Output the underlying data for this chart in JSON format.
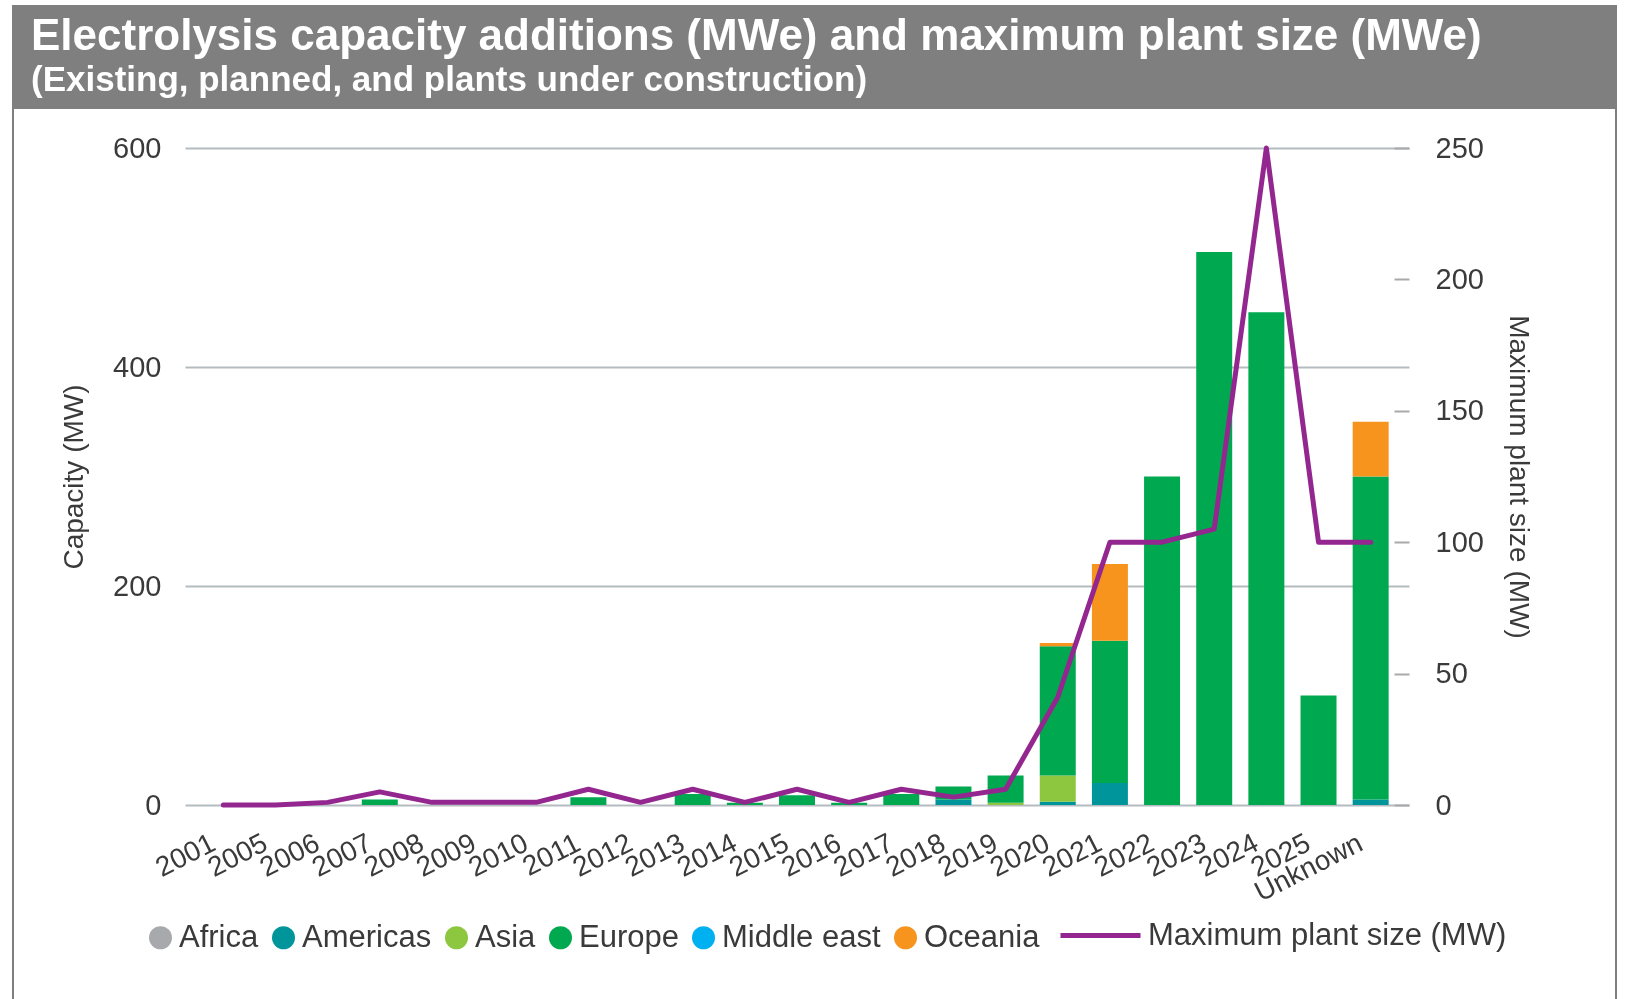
{
  "chart_data": {
    "type": "bar",
    "title": "Electrolysis capacity additions (MWe) and maximum plant size (MWe)",
    "subtitle": "(Existing, planned, and plants under construction)",
    "ylabel": "Capacity (MW)",
    "y2label": "Maximum plant size (MW)",
    "categories": [
      "2001",
      "2005",
      "2006",
      "2007",
      "2008",
      "2009",
      "2010",
      "2011",
      "2012",
      "2013",
      "2014",
      "2015",
      "2016",
      "2017",
      "2018",
      "2019",
      "2020",
      "2021",
      "2022",
      "2023",
      "2024",
      "2025",
      "Unknown"
    ],
    "series": [
      {
        "name": "Africa",
        "color": "#a7a9ac",
        "values": [
          null,
          null,
          null,
          null,
          null,
          null,
          null,
          null,
          null,
          null,
          null,
          null,
          null,
          null,
          null,
          null,
          null,
          null,
          null,
          null,
          null,
          null,
          null
        ]
      },
      {
        "name": "Americas",
        "color": "#00959a",
        "values": [
          null,
          null,
          null,
          null,
          null,
          null,
          null,
          null,
          null,
          null,
          null,
          null,
          null,
          null,
          5,
          null,
          3,
          20,
          null,
          null,
          null,
          null,
          5
        ]
      },
      {
        "name": "Asia",
        "color": "#8dc63f",
        "values": [
          null,
          null,
          null,
          null,
          null,
          null,
          null,
          null,
          null,
          null,
          null,
          null,
          null,
          null,
          null,
          2,
          24,
          null,
          null,
          null,
          null,
          null,
          null
        ]
      },
      {
        "name": "Europe",
        "color": "#00a94f",
        "values": [
          null,
          null,
          null,
          5,
          null,
          null,
          null,
          7,
          null,
          10,
          2,
          9,
          2,
          10,
          12,
          25,
          118,
          130,
          300,
          505,
          450,
          100,
          295
        ]
      },
      {
        "name": "Middle east",
        "color": "#00b0f0",
        "values": [
          null,
          null,
          null,
          null,
          null,
          null,
          null,
          null,
          null,
          null,
          null,
          null,
          null,
          null,
          null,
          null,
          null,
          null,
          null,
          null,
          null,
          null,
          null
        ]
      },
      {
        "name": "Oceania",
        "color": "#f7941d",
        "values": [
          null,
          null,
          null,
          null,
          null,
          null,
          null,
          null,
          null,
          null,
          null,
          null,
          null,
          null,
          null,
          null,
          3,
          70,
          null,
          null,
          null,
          null,
          50
        ]
      },
      {
        "name": "Maximum plant size (MW)",
        "type": "line",
        "axis": "y2",
        "color": "#93278f",
        "values": [
          0,
          0,
          1,
          5,
          1,
          1,
          1,
          6,
          1,
          6,
          1,
          6,
          1,
          6,
          3,
          6,
          41,
          100,
          100,
          105,
          250,
          100,
          100
        ]
      }
    ],
    "stacked": true,
    "ylim": [
      0,
      600
    ],
    "yticks": [
      0,
      200,
      400,
      600
    ],
    "y2lim": [
      0,
      250
    ],
    "y2ticks": [
      0,
      50,
      100,
      150,
      200,
      250
    ],
    "grid": "y",
    "legend": "bottom"
  }
}
